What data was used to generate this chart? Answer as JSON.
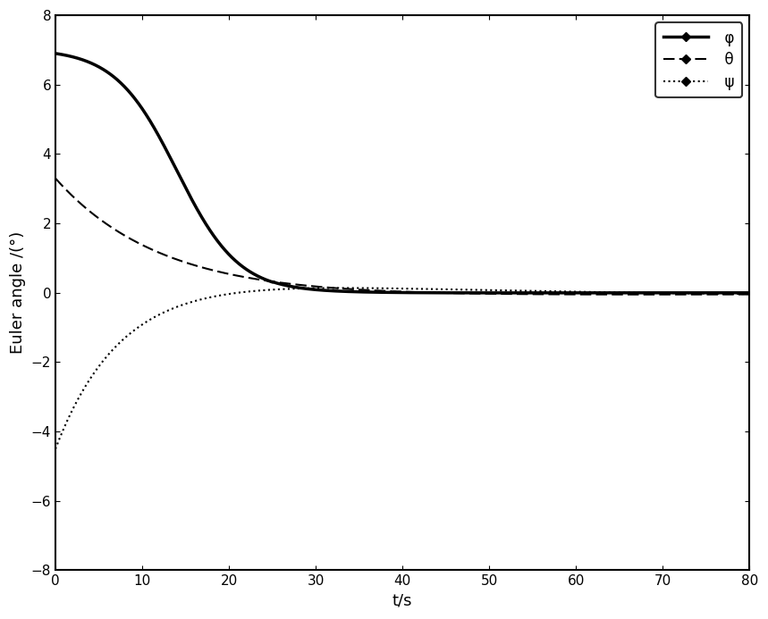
{
  "title": "",
  "xlabel": "t/s",
  "ylabel": "Euler angle /(°)",
  "xlim": [
    0,
    80
  ],
  "ylim": [
    -8,
    8
  ],
  "xticks": [
    0,
    10,
    20,
    30,
    40,
    50,
    60,
    70,
    80
  ],
  "yticks": [
    -8,
    -6,
    -4,
    -2,
    0,
    2,
    4,
    6,
    8
  ],
  "legend_labels": [
    "φ",
    "θ",
    "ψ"
  ],
  "phi_init": 6.9,
  "theta_init": 3.3,
  "psi_init": -4.5,
  "t_end": 80,
  "background_color": "#ffffff",
  "line_color": "#000000"
}
